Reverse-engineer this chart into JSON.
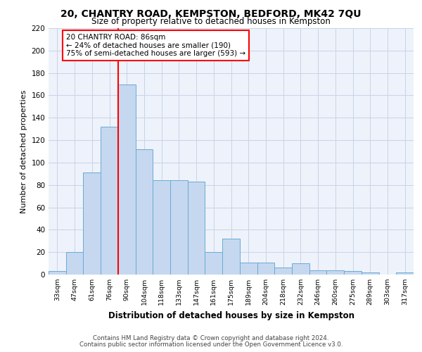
{
  "title1": "20, CHANTRY ROAD, KEMPSTON, BEDFORD, MK42 7QU",
  "title2": "Size of property relative to detached houses in Kempston",
  "xlabel": "Distribution of detached houses by size in Kempston",
  "ylabel": "Number of detached properties",
  "categories": [
    "33sqm",
    "47sqm",
    "61sqm",
    "76sqm",
    "90sqm",
    "104sqm",
    "118sqm",
    "133sqm",
    "147sqm",
    "161sqm",
    "175sqm",
    "189sqm",
    "204sqm",
    "218sqm",
    "232sqm",
    "246sqm",
    "260sqm",
    "275sqm",
    "289sqm",
    "303sqm",
    "317sqm"
  ],
  "values": [
    3,
    20,
    91,
    132,
    170,
    112,
    84,
    84,
    83,
    20,
    32,
    11,
    11,
    6,
    10,
    4,
    4,
    3,
    2,
    0,
    2
  ],
  "bar_color": "#c5d8f0",
  "bar_edge_color": "#6aaad4",
  "vline_color": "red",
  "vline_x": 3.5,
  "annotation_text": "20 CHANTRY ROAD: 86sqm\n← 24% of detached houses are smaller (190)\n75% of semi-detached houses are larger (593) →",
  "annotation_box_color": "white",
  "annotation_box_edge": "red",
  "ylim": [
    0,
    220
  ],
  "yticks": [
    0,
    20,
    40,
    60,
    80,
    100,
    120,
    140,
    160,
    180,
    200,
    220
  ],
  "grid_color": "#c8d4e8",
  "bg_color": "#eef2fa",
  "footer1": "Contains HM Land Registry data © Crown copyright and database right 2024.",
  "footer2": "Contains public sector information licensed under the Open Government Licence v3.0."
}
